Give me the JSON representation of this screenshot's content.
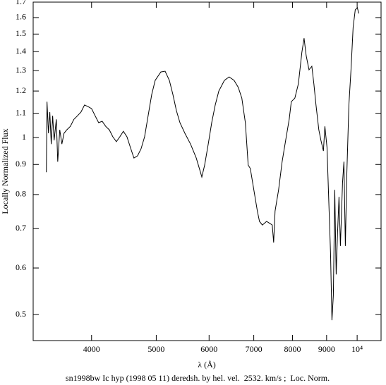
{
  "chart_data": {
    "type": "line",
    "xlabel": "λ (Å)",
    "ylabel": "Locally Normalized Flux",
    "caption": "sn1998bw Ic hyp (1998 05 11) deredsh. by hel. vel.  2532. km/s ;  Loc. Norm.",
    "x": [
      3422,
      3430,
      3447,
      3463,
      3480,
      3497,
      3515,
      3542,
      3559,
      3584,
      3611,
      3637,
      3673,
      3718,
      3763,
      3810,
      3856,
      3904,
      3952,
      4000,
      4049,
      4099,
      4149,
      4200,
      4252,
      4304,
      4357,
      4410,
      4464,
      4519,
      4574,
      4630,
      4687,
      4745,
      4803,
      4862,
      4922,
      4982,
      5080,
      5155,
      5231,
      5295,
      5360,
      5426,
      5519,
      5628,
      5740,
      5824,
      5852,
      5909,
      5982,
      6055,
      6129,
      6205,
      6325,
      6429,
      6540,
      6636,
      6718,
      6800,
      6867,
      6917,
      7002,
      7088,
      7140,
      7210,
      7317,
      7406,
      7461,
      7497,
      7534,
      7626,
      7720,
      7814,
      7910,
      7968,
      8066,
      8165,
      8265,
      8326,
      8387,
      8469,
      8553,
      8614,
      8677,
      8762,
      8826,
      8902,
      8946,
      9012,
      9078,
      9122,
      9167,
      9211,
      9256,
      9302,
      9347,
      9393,
      9438,
      9508,
      9554,
      9601,
      9648,
      9718,
      9789,
      9861,
      9934,
      10007,
      10056
    ],
    "values": [
      0.873,
      1.151,
      1.017,
      1.105,
      0.975,
      1.089,
      0.989,
      1.074,
      0.91,
      1.031,
      0.975,
      1.017,
      1.031,
      1.045,
      1.074,
      1.089,
      1.105,
      1.136,
      1.129,
      1.12,
      1.089,
      1.06,
      1.066,
      1.045,
      1.031,
      1.003,
      0.984,
      1.003,
      1.025,
      1.003,
      0.962,
      0.923,
      0.931,
      0.957,
      1.003,
      1.089,
      1.184,
      1.251,
      1.293,
      1.297,
      1.251,
      1.184,
      1.111,
      1.06,
      1.017,
      0.975,
      0.923,
      0.873,
      0.857,
      0.898,
      0.975,
      1.06,
      1.136,
      1.2,
      1.251,
      1.268,
      1.251,
      1.217,
      1.167,
      1.06,
      0.898,
      0.886,
      0.815,
      0.75,
      0.72,
      0.71,
      0.72,
      0.714,
      0.71,
      0.663,
      0.75,
      0.815,
      0.91,
      0.989,
      1.074,
      1.151,
      1.167,
      1.234,
      1.397,
      1.476,
      1.378,
      1.304,
      1.322,
      1.234,
      1.136,
      1.031,
      0.989,
      0.949,
      1.045,
      0.962,
      0.75,
      0.636,
      0.489,
      0.539,
      0.815,
      0.585,
      0.691,
      0.793,
      0.654,
      0.838,
      0.91,
      0.654,
      0.861,
      1.136,
      1.304,
      1.539,
      1.649,
      1.663,
      1.626
    ],
    "color": "#000000",
    "xscale": "log",
    "yscale": "log",
    "xlim": [
      3270,
      10860
    ],
    "ylim": [
      0.4515,
      1.7
    ],
    "xticks": [
      4000,
      5000,
      6000,
      7000,
      8000,
      9000,
      {
        "value": 10000,
        "label": "10⁴"
      }
    ],
    "yticks": [
      0.5,
      0.6,
      0.7,
      0.8,
      0.9,
      1,
      1.1,
      1.2,
      1.3,
      1.4,
      1.5,
      1.6,
      1.7
    ]
  }
}
